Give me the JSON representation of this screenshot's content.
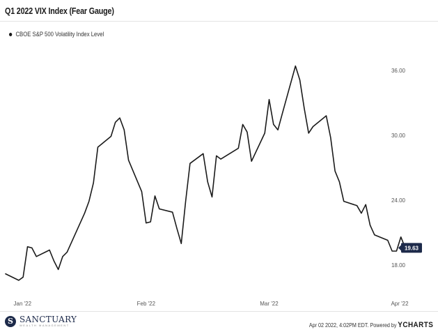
{
  "header": {
    "title": "Q1 2022 VIX Index (Fear Gauge)"
  },
  "footer": {
    "timestamp_text": "Apr 02 2022, 4:02PM EDT. Powered by",
    "brand": "YCHARTS"
  },
  "logo": {
    "name": "SANCTUARY",
    "subtitle": "WEALTH MANAGEMENT",
    "mark": "S"
  },
  "chart_data": {
    "type": "line",
    "title": "Q1 2022 VIX Index (Fear Gauge)",
    "xlabel": "",
    "ylabel": "",
    "x_ticks": [
      "Jan '22",
      "Feb '22",
      "Mar '22",
      "Apr '22"
    ],
    "y_ticks": [
      "18.00",
      "24.00",
      "30.00",
      "36.00"
    ],
    "ylim": [
      15.5,
      40.5
    ],
    "xlim": [
      "2021-12-31",
      "2022-04-01"
    ],
    "grid": false,
    "legend_position": "top-left",
    "last_value_label": "19.63",
    "colors": {
      "line": "#1a1a1a",
      "badge": "#1d2a4a"
    },
    "series": [
      {
        "name": "CBOE S&P 500 Volatility Index Level",
        "x": [
          "2021-12-31",
          "2022-01-03",
          "2022-01-04",
          "2022-01-05",
          "2022-01-06",
          "2022-01-07",
          "2022-01-10",
          "2022-01-11",
          "2022-01-12",
          "2022-01-13",
          "2022-01-14",
          "2022-01-18",
          "2022-01-19",
          "2022-01-20",
          "2022-01-21",
          "2022-01-24",
          "2022-01-25",
          "2022-01-26",
          "2022-01-27",
          "2022-01-28",
          "2022-01-31",
          "2022-02-01",
          "2022-02-02",
          "2022-02-03",
          "2022-02-04",
          "2022-02-07",
          "2022-02-08",
          "2022-02-09",
          "2022-02-10",
          "2022-02-11",
          "2022-02-14",
          "2022-02-15",
          "2022-02-16",
          "2022-02-17",
          "2022-02-18",
          "2022-02-22",
          "2022-02-23",
          "2022-02-24",
          "2022-02-25",
          "2022-02-28",
          "2022-03-01",
          "2022-03-02",
          "2022-03-03",
          "2022-03-04",
          "2022-03-07",
          "2022-03-08",
          "2022-03-09",
          "2022-03-10",
          "2022-03-11",
          "2022-03-14",
          "2022-03-15",
          "2022-03-16",
          "2022-03-17",
          "2022-03-18",
          "2022-03-21",
          "2022-03-22",
          "2022-03-23",
          "2022-03-24",
          "2022-03-25",
          "2022-03-28",
          "2022-03-29",
          "2022-03-30",
          "2022-03-31",
          "2022-04-01"
        ],
        "values": [
          17.2,
          16.6,
          16.9,
          19.7,
          19.6,
          18.8,
          19.4,
          18.4,
          17.6,
          18.8,
          19.2,
          22.8,
          23.9,
          25.6,
          28.9,
          29.9,
          31.2,
          31.6,
          30.5,
          27.7,
          24.8,
          21.9,
          22.0,
          24.4,
          23.2,
          22.9,
          21.4,
          20.0,
          23.9,
          27.4,
          28.3,
          25.7,
          24.3,
          28.1,
          27.8,
          28.8,
          31.0,
          30.3,
          27.6,
          30.2,
          33.3,
          31.0,
          30.5,
          32.0,
          36.4,
          35.1,
          32.5,
          30.2,
          30.8,
          31.8,
          29.8,
          26.7,
          25.7,
          23.9,
          23.5,
          22.8,
          23.6,
          21.7,
          20.8,
          20.3,
          19.3,
          19.3,
          20.6,
          19.6
        ]
      }
    ]
  }
}
